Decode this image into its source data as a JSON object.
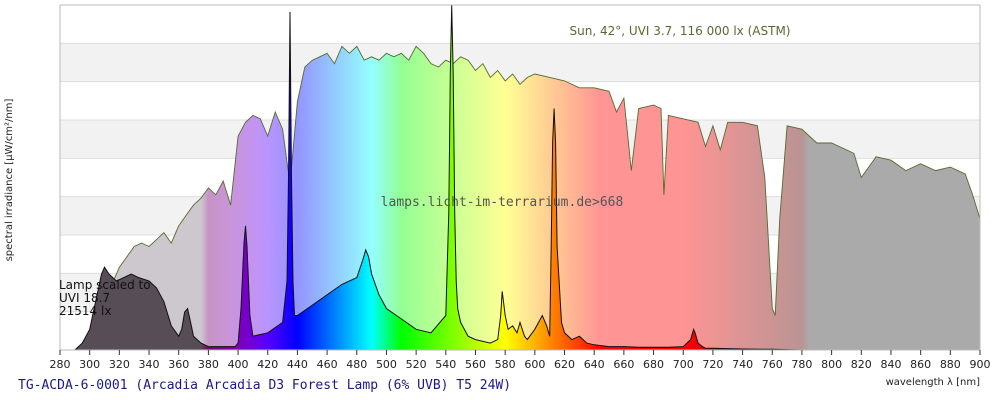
{
  "chart_data": {
    "type": "area",
    "title": "TG-ACDA-6-0001 (Arcadia Arcadia D3 Forest Lamp (6% UVB) T5 24W)",
    "xlabel": "wavelength λ [nm]",
    "ylabel": "spectral irradiance [µW/cm²/nm]",
    "xlim": [
      280,
      900
    ],
    "x_ticks": [
      280,
      300,
      320,
      340,
      360,
      380,
      400,
      420,
      440,
      460,
      480,
      500,
      520,
      540,
      560,
      580,
      600,
      620,
      640,
      660,
      680,
      700,
      720,
      740,
      760,
      780,
      800,
      820,
      840,
      860,
      880,
      900
    ],
    "ylim": [
      0,
      1
    ],
    "grid": true,
    "legend": "none",
    "watermark": "lamps.licht-im-terrarium.de>668",
    "sun_label": "Sun, 42°, UVI 3.7, 116 000 lx (ASTM)",
    "lamp_label_lines": [
      "Lamp scaled to",
      "UVI 18.7",
      "21514 lx"
    ],
    "series": [
      {
        "name": "Sun, 42°, UVI 3.7, 116 000 lx (ASTM)",
        "x": [
          290,
          295,
          300,
          305,
          310,
          315,
          320,
          325,
          330,
          335,
          340,
          345,
          350,
          355,
          360,
          365,
          370,
          375,
          380,
          385,
          390,
          395,
          400,
          405,
          410,
          415,
          420,
          425,
          430,
          435,
          440,
          445,
          450,
          455,
          460,
          465,
          470,
          475,
          480,
          485,
          490,
          495,
          500,
          505,
          510,
          515,
          520,
          525,
          530,
          535,
          540,
          545,
          550,
          555,
          560,
          565,
          570,
          575,
          580,
          585,
          590,
          595,
          600,
          610,
          620,
          630,
          640,
          650,
          655,
          660,
          665,
          670,
          680,
          685,
          687,
          690,
          700,
          710,
          715,
          720,
          725,
          730,
          740,
          750,
          755,
          760,
          762,
          765,
          770,
          780,
          790,
          800,
          810,
          815,
          820,
          830,
          840,
          850,
          860,
          870,
          880,
          890,
          895,
          900
        ],
        "y": [
          0.0,
          0.01,
          0.04,
          0.08,
          0.13,
          0.19,
          0.24,
          0.27,
          0.3,
          0.31,
          0.3,
          0.32,
          0.34,
          0.31,
          0.36,
          0.39,
          0.42,
          0.44,
          0.47,
          0.45,
          0.49,
          0.42,
          0.62,
          0.66,
          0.68,
          0.67,
          0.62,
          0.69,
          0.64,
          0.48,
          0.72,
          0.82,
          0.84,
          0.85,
          0.86,
          0.83,
          0.88,
          0.86,
          0.88,
          0.84,
          0.85,
          0.84,
          0.86,
          0.85,
          0.86,
          0.84,
          0.88,
          0.86,
          0.83,
          0.82,
          0.84,
          0.83,
          0.85,
          0.84,
          0.81,
          0.83,
          0.79,
          0.81,
          0.78,
          0.8,
          0.77,
          0.79,
          0.8,
          0.79,
          0.78,
          0.76,
          0.76,
          0.75,
          0.69,
          0.73,
          0.52,
          0.7,
          0.71,
          0.7,
          0.45,
          0.68,
          0.67,
          0.66,
          0.59,
          0.65,
          0.58,
          0.66,
          0.66,
          0.65,
          0.5,
          0.12,
          0.1,
          0.38,
          0.65,
          0.64,
          0.6,
          0.6,
          0.58,
          0.57,
          0.5,
          0.56,
          0.55,
          0.52,
          0.54,
          0.52,
          0.53,
          0.51,
          0.45,
          0.38
        ]
      },
      {
        "name": "Arcadia Arcadia D3 Forest Lamp (6% UVB) T5 24W",
        "x": [
          290,
          295,
          300,
          302,
          305,
          308,
          310,
          313,
          318,
          323,
          328,
          333,
          340,
          345,
          350,
          355,
          360,
          362,
          364,
          366,
          368,
          370,
          375,
          380,
          390,
          398,
          400,
          402,
          404,
          405,
          406,
          408,
          410,
          420,
          430,
          433,
          434,
          435,
          436,
          437,
          438,
          440,
          450,
          460,
          470,
          480,
          484,
          486,
          488,
          490,
          495,
          500,
          510,
          520,
          530,
          540,
          542,
          543,
          544,
          545,
          546,
          547,
          548,
          550,
          555,
          560,
          570,
          575,
          577,
          578,
          580,
          582,
          585,
          588,
          590,
          593,
          595,
          600,
          605,
          608,
          610,
          611,
          612,
          613,
          614,
          615,
          618,
          620,
          625,
          630,
          635,
          640,
          650,
          660,
          670,
          680,
          690,
          700,
          705,
          707,
          708,
          710,
          713,
          715,
          720,
          740,
          760,
          780
        ],
        "y": [
          0.0,
          0.02,
          0.06,
          0.1,
          0.16,
          0.22,
          0.24,
          0.22,
          0.2,
          0.21,
          0.22,
          0.21,
          0.2,
          0.18,
          0.14,
          0.07,
          0.04,
          0.06,
          0.11,
          0.12,
          0.08,
          0.04,
          0.02,
          0.01,
          0.01,
          0.01,
          0.02,
          0.12,
          0.31,
          0.36,
          0.3,
          0.1,
          0.04,
          0.05,
          0.08,
          0.2,
          0.5,
          0.98,
          0.5,
          0.2,
          0.1,
          0.1,
          0.13,
          0.16,
          0.19,
          0.21,
          0.26,
          0.29,
          0.27,
          0.22,
          0.16,
          0.12,
          0.09,
          0.06,
          0.05,
          0.1,
          0.4,
          0.8,
          1.0,
          0.8,
          0.4,
          0.2,
          0.12,
          0.08,
          0.04,
          0.03,
          0.02,
          0.03,
          0.1,
          0.17,
          0.1,
          0.06,
          0.07,
          0.05,
          0.08,
          0.04,
          0.03,
          0.06,
          0.1,
          0.07,
          0.04,
          0.3,
          0.6,
          0.7,
          0.6,
          0.3,
          0.08,
          0.05,
          0.03,
          0.04,
          0.02,
          0.015,
          0.01,
          0.01,
          0.008,
          0.008,
          0.008,
          0.01,
          0.03,
          0.06,
          0.05,
          0.02,
          0.01,
          0.005,
          0.005,
          0.003,
          0.002,
          0.0
        ]
      }
    ]
  }
}
